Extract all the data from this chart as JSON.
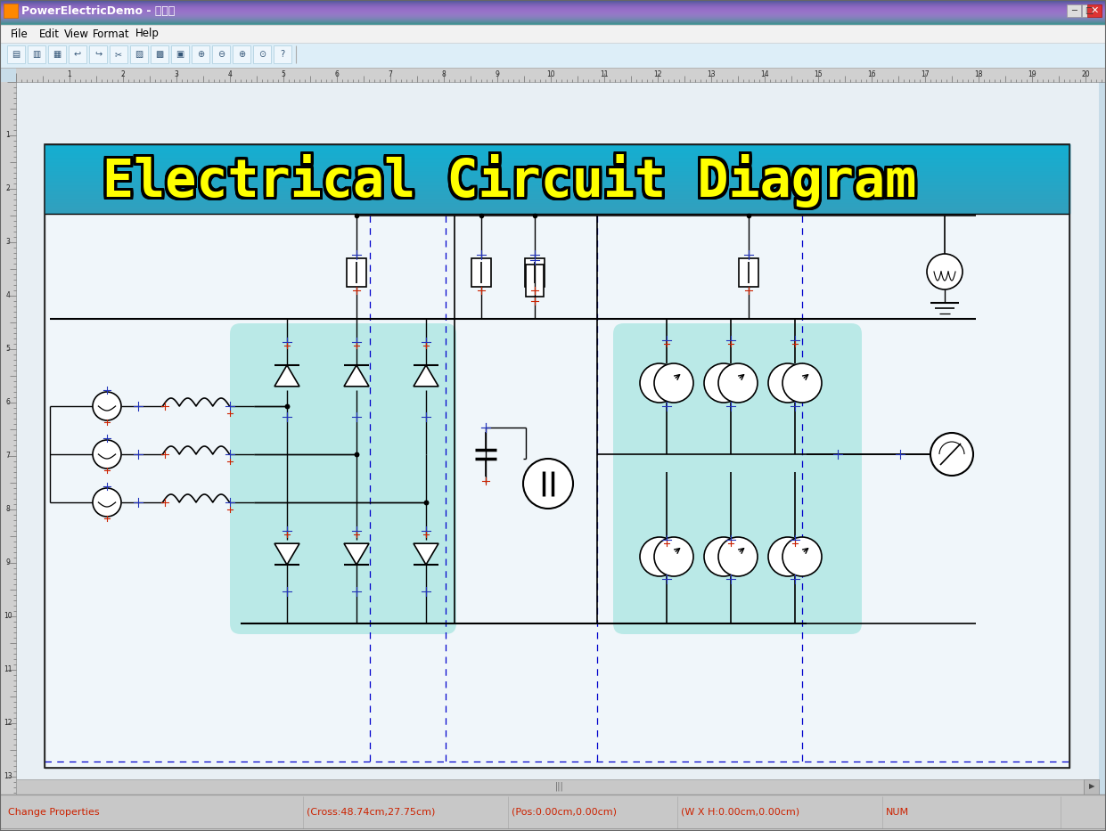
{
  "title_bar": "PowerElectricDemo - 无标题",
  "menu_items": [
    "File",
    "Edit",
    "View",
    "Format",
    "Help"
  ],
  "status_bar_items": [
    "Change Properties",
    "(Cross:48.74cm,27.75cm)",
    "(Pos:0.00cm,0.00cm)",
    "(W X H:0.00cm,0.00cm)",
    "NUM"
  ],
  "diagram_title": "Electrical Circuit Diagram",
  "title_bg_top": "#1ab0d8",
  "title_bg_bot": "#35c8e8",
  "title_text_color": "#ffff00",
  "window_bg": "#c8dce8",
  "canvas_bg": "#e8f0f5",
  "titlebar_bg": "#6090c0",
  "menu_bg": "#f0f0f0",
  "toolbar_bg": "#d8e8f2",
  "ruler_bg": "#c4c4c4",
  "statusbar_bg": "#c8c8c8",
  "dashed_color": "#0000bb",
  "cross_color": "#cc2200",
  "highlight_color": "#90ddd0",
  "line_color": "#000000",
  "component_bg": "#ffffff"
}
